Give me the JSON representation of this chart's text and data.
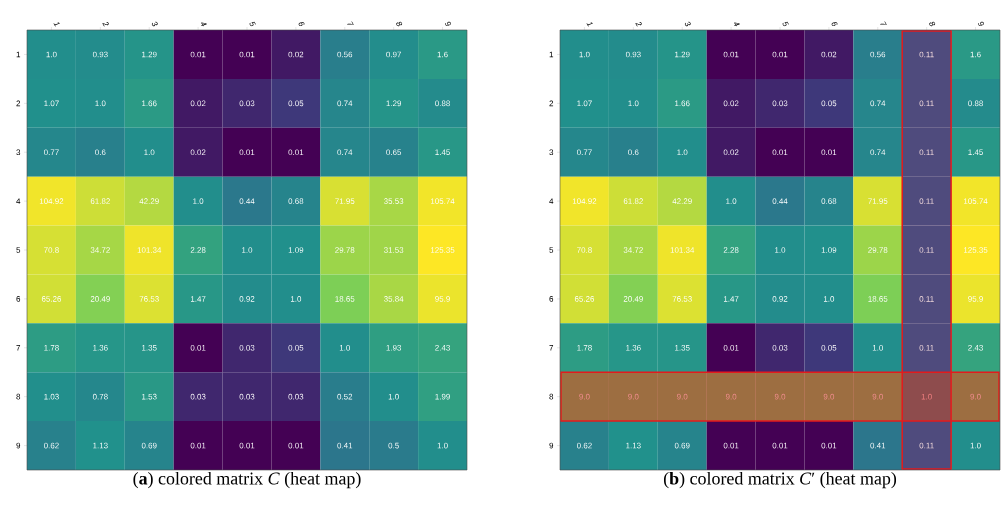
{
  "chart_data": [
    {
      "type": "heatmap",
      "title": "(**a**) colored matrix *C* (heat map)",
      "categories": [
        "1",
        "2",
        "3",
        "4",
        "5",
        "6",
        "7",
        "8",
        "9"
      ],
      "y_categories": [
        "1",
        "2",
        "3",
        "4",
        "5",
        "6",
        "7",
        "8",
        "9"
      ],
      "cells": [
        [
          1.0,
          0.93,
          1.29,
          0.01,
          0.01,
          0.02,
          0.56,
          0.97,
          1.6
        ],
        [
          1.07,
          1.0,
          1.66,
          0.02,
          0.03,
          0.05,
          0.74,
          1.29,
          0.88
        ],
        [
          0.77,
          0.6,
          1.0,
          0.02,
          0.01,
          0.01,
          0.74,
          0.65,
          1.45
        ],
        [
          104.92,
          61.82,
          42.29,
          1.0,
          0.44,
          0.68,
          71.95,
          35.53,
          105.74
        ],
        [
          70.8,
          34.72,
          101.34,
          2.28,
          1.0,
          1.09,
          29.78,
          31.53,
          125.35
        ],
        [
          65.26,
          20.49,
          76.53,
          1.47,
          0.92,
          1.0,
          18.65,
          35.84,
          95.9
        ],
        [
          1.78,
          1.36,
          1.35,
          0.01,
          0.03,
          0.05,
          1.0,
          1.93,
          2.43
        ],
        [
          1.03,
          0.78,
          1.53,
          0.03,
          0.03,
          0.03,
          0.52,
          1.0,
          1.99
        ],
        [
          0.62,
          1.13,
          0.69,
          0.01,
          0.01,
          0.01,
          0.41,
          0.5,
          1.0
        ]
      ],
      "cell_labels": [
        [
          "1.0",
          "0.93",
          "1.29",
          "0.01",
          "0.01",
          "0.02",
          "0.56",
          "0.97",
          "1.6"
        ],
        [
          "1.07",
          "1.0",
          "1.66",
          "0.02",
          "0.03",
          "0.05",
          "0.74",
          "1.29",
          "0.88"
        ],
        [
          "0.77",
          "0.6",
          "1.0",
          "0.02",
          "0.01",
          "0.01",
          "0.74",
          "0.65",
          "1.45"
        ],
        [
          "104.92",
          "61.82",
          "42.29",
          "1.0",
          "0.44",
          "0.68",
          "71.95",
          "35.53",
          "105.74"
        ],
        [
          "70.8",
          "34.72",
          "101.34",
          "2.28",
          "1.0",
          "1.09",
          "29.78",
          "31.53",
          "125.35"
        ],
        [
          "65.26",
          "20.49",
          "76.53",
          "1.47",
          "0.92",
          "1.0",
          "18.65",
          "35.84",
          "95.9"
        ],
        [
          "1.78",
          "1.36",
          "1.35",
          "0.01",
          "0.03",
          "0.05",
          "1.0",
          "1.93",
          "2.43"
        ],
        [
          "1.03",
          "0.78",
          "1.53",
          "0.03",
          "0.03",
          "0.03",
          "0.52",
          "1.0",
          "1.99"
        ],
        [
          "0.62",
          "1.13",
          "0.69",
          "0.01",
          "0.01",
          "0.01",
          "0.41",
          "0.5",
          "1.0"
        ]
      ]
    },
    {
      "type": "heatmap",
      "title": "(**b**) colored matrix *C*′ (heat map)",
      "categories": [
        "1",
        "2",
        "3",
        "4",
        "5",
        "6",
        "7",
        "8",
        "9"
      ],
      "y_categories": [
        "1",
        "2",
        "3",
        "4",
        "5",
        "6",
        "7",
        "8",
        "9"
      ],
      "cells": [
        [
          1.0,
          0.93,
          1.29,
          0.01,
          0.01,
          0.02,
          0.56,
          0.11,
          1.6
        ],
        [
          1.07,
          1.0,
          1.66,
          0.02,
          0.03,
          0.05,
          0.74,
          0.11,
          0.88
        ],
        [
          0.77,
          0.6,
          1.0,
          0.02,
          0.01,
          0.01,
          0.74,
          0.11,
          1.45
        ],
        [
          104.92,
          61.82,
          42.29,
          1.0,
          0.44,
          0.68,
          71.95,
          0.11,
          105.74
        ],
        [
          70.8,
          34.72,
          101.34,
          2.28,
          1.0,
          1.09,
          29.78,
          0.11,
          125.35
        ],
        [
          65.26,
          20.49,
          76.53,
          1.47,
          0.92,
          1.0,
          18.65,
          0.11,
          95.9
        ],
        [
          1.78,
          1.36,
          1.35,
          0.01,
          0.03,
          0.05,
          1.0,
          0.11,
          2.43
        ],
        [
          9.0,
          9.0,
          9.0,
          9.0,
          9.0,
          9.0,
          9.0,
          1.0,
          9.0
        ],
        [
          0.62,
          1.13,
          0.69,
          0.01,
          0.01,
          0.01,
          0.41,
          0.11,
          1.0
        ]
      ],
      "cell_labels": [
        [
          "1.0",
          "0.93",
          "1.29",
          "0.01",
          "0.01",
          "0.02",
          "0.56",
          "0.11",
          "1.6"
        ],
        [
          "1.07",
          "1.0",
          "1.66",
          "0.02",
          "0.03",
          "0.05",
          "0.74",
          "0.11",
          "0.88"
        ],
        [
          "0.77",
          "0.6",
          "1.0",
          "0.02",
          "0.01",
          "0.01",
          "0.74",
          "0.11",
          "1.45"
        ],
        [
          "104.92",
          "61.82",
          "42.29",
          "1.0",
          "0.44",
          "0.68",
          "71.95",
          "0.11",
          "105.74"
        ],
        [
          "70.8",
          "34.72",
          "101.34",
          "2.28",
          "1.0",
          "1.09",
          "29.78",
          "0.11",
          "125.35"
        ],
        [
          "65.26",
          "20.49",
          "76.53",
          "1.47",
          "0.92",
          "1.0",
          "18.65",
          "0.11",
          "95.9"
        ],
        [
          "1.78",
          "1.36",
          "1.35",
          "0.01",
          "0.03",
          "0.05",
          "1.0",
          "0.11",
          "2.43"
        ],
        [
          "9.0",
          "9.0",
          "9.0",
          "9.0",
          "9.0",
          "9.0",
          "9.0",
          "1.0",
          "9.0"
        ],
        [
          "0.62",
          "1.13",
          "0.69",
          "0.01",
          "0.01",
          "0.01",
          "0.41",
          "0.11",
          "1.0"
        ]
      ],
      "bands": [
        {
          "axis": "x",
          "from": "8",
          "to": "8",
          "color": "#e41a1c"
        },
        {
          "axis": "y",
          "from": "8",
          "to": "8",
          "color": "#e41a1c"
        }
      ]
    }
  ]
}
